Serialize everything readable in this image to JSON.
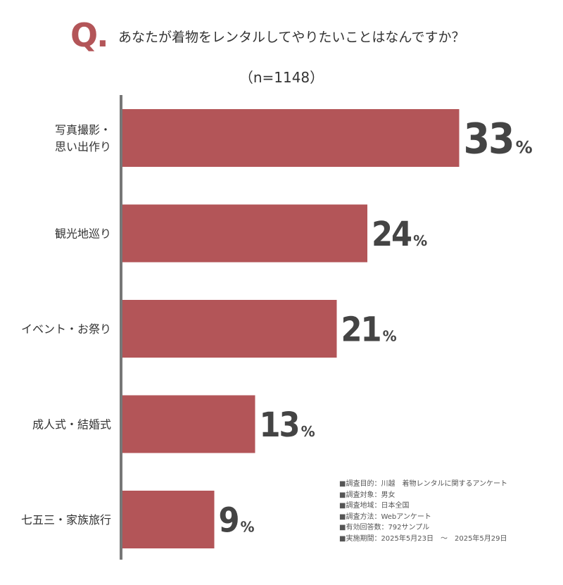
{
  "header": {
    "q_mark": "Q.",
    "question": "あなたが着物をレンタルしてやりたいことはなんですか？",
    "sample_size": "（n=1148）"
  },
  "colors": {
    "bar": "#b35558",
    "axis": "#777777",
    "q_mark": "#b35558",
    "value_text": "#444444"
  },
  "chart_data": {
    "type": "bar",
    "orientation": "horizontal",
    "title": "あなたが着物をレンタルしてやりたいことはなんですか？",
    "xlabel": "",
    "ylabel": "",
    "xlim": [
      0,
      40
    ],
    "unit": "%",
    "categories": [
      [
        "写真撮影・",
        "思い出作り"
      ],
      [
        "観光地巡り"
      ],
      [
        "イベント・お祭り"
      ],
      [
        "成人式・結婚式"
      ],
      [
        "七五三・家族旅行"
      ]
    ],
    "values": [
      33,
      24,
      21,
      13,
      9
    ],
    "value_labels": [
      "33",
      "24",
      "21",
      "13",
      "9"
    ]
  },
  "notes": [
    "■調査目的：川越　着物レンタルに関するアンケート",
    "■調査対象：男女",
    "■調査地域：日本全国",
    "■調査方法：Webアンケート",
    "■有効回答数：792サンプル",
    "■実施期間：2025年5月23日　〜　2025年5月29日"
  ]
}
